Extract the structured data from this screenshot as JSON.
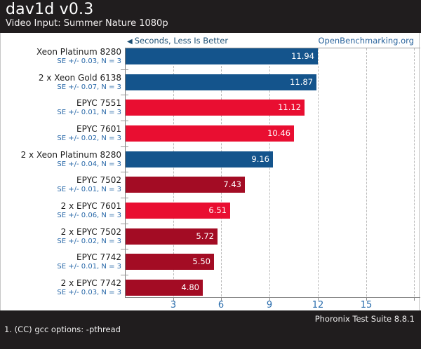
{
  "header": {
    "title": "dav1d v0.3",
    "subtitle": "Video Input: Summer Nature 1080p"
  },
  "chart": {
    "better_arrow": "◀",
    "better_label": "Seconds, Less Is Better",
    "watermark": "OpenBenchmarking.org"
  },
  "chart_data": {
    "type": "bar",
    "orientation": "horizontal",
    "title": "dav1d v0.3",
    "subtitle": "Video Input: Summer Nature 1080p",
    "value_unit": "Seconds",
    "lower_is_better": true,
    "xlim": [
      0,
      18.33
    ],
    "xticks": [
      3,
      6,
      9,
      12,
      15
    ],
    "gridlines": [
      3,
      6,
      9,
      12,
      15,
      18
    ],
    "grid_style": "dashed-vertical",
    "legend": "none",
    "categories": [
      "Xeon Platinum 8280",
      "2 x Xeon Gold 6138",
      "EPYC 7551",
      "EPYC 7601",
      "2 x Xeon Platinum 8280",
      "EPYC 7502",
      "2 x EPYC 7601",
      "2 x EPYC 7502",
      "EPYC 7742",
      "2 x EPYC 7742"
    ],
    "values": [
      11.94,
      11.87,
      11.12,
      10.46,
      9.16,
      7.43,
      6.51,
      5.72,
      5.5,
      4.8
    ],
    "rows": [
      {
        "label": "Xeon Platinum 8280",
        "se": "SE +/- 0.03, N = 3",
        "value": 11.94,
        "display": "11.94",
        "color": "blue"
      },
      {
        "label": "2 x Xeon Gold 6138",
        "se": "SE +/- 0.07, N = 3",
        "value": 11.87,
        "display": "11.87",
        "color": "blue"
      },
      {
        "label": "EPYC 7551",
        "se": "SE +/- 0.01, N = 3",
        "value": 11.12,
        "display": "11.12",
        "color": "red"
      },
      {
        "label": "EPYC 7601",
        "se": "SE +/- 0.02, N = 3",
        "value": 10.46,
        "display": "10.46",
        "color": "red"
      },
      {
        "label": "2 x Xeon Platinum 8280",
        "se": "SE +/- 0.04, N = 3",
        "value": 9.16,
        "display": "9.16",
        "color": "blue"
      },
      {
        "label": "EPYC 7502",
        "se": "SE +/- 0.01, N = 3",
        "value": 7.43,
        "display": "7.43",
        "color": "darkred"
      },
      {
        "label": "2 x EPYC 7601",
        "se": "SE +/- 0.06, N = 3",
        "value": 6.51,
        "display": "6.51",
        "color": "red"
      },
      {
        "label": "2 x EPYC 7502",
        "se": "SE +/- 0.02, N = 3",
        "value": 5.72,
        "display": "5.72",
        "color": "darkred"
      },
      {
        "label": "EPYC 7742",
        "se": "SE +/- 0.01, N = 3",
        "value": 5.5,
        "display": "5.50",
        "color": "darkred"
      },
      {
        "label": "2 x EPYC 7742",
        "se": "SE +/- 0.03, N = 3",
        "value": 4.8,
        "display": "4.80",
        "color": "darkred"
      }
    ]
  },
  "colors": {
    "blue": "#14548c",
    "red": "#e90e31",
    "darkred": "#a30c24",
    "accent_blue": "#2a6dad",
    "better_blue": "#1b4e73",
    "link_blue": "#29639c",
    "header_bg": "#201d1e"
  },
  "footer": {
    "suite": "Phoronix Test Suite 8.8.1",
    "note": "1. (CC) gcc options: -pthread"
  }
}
